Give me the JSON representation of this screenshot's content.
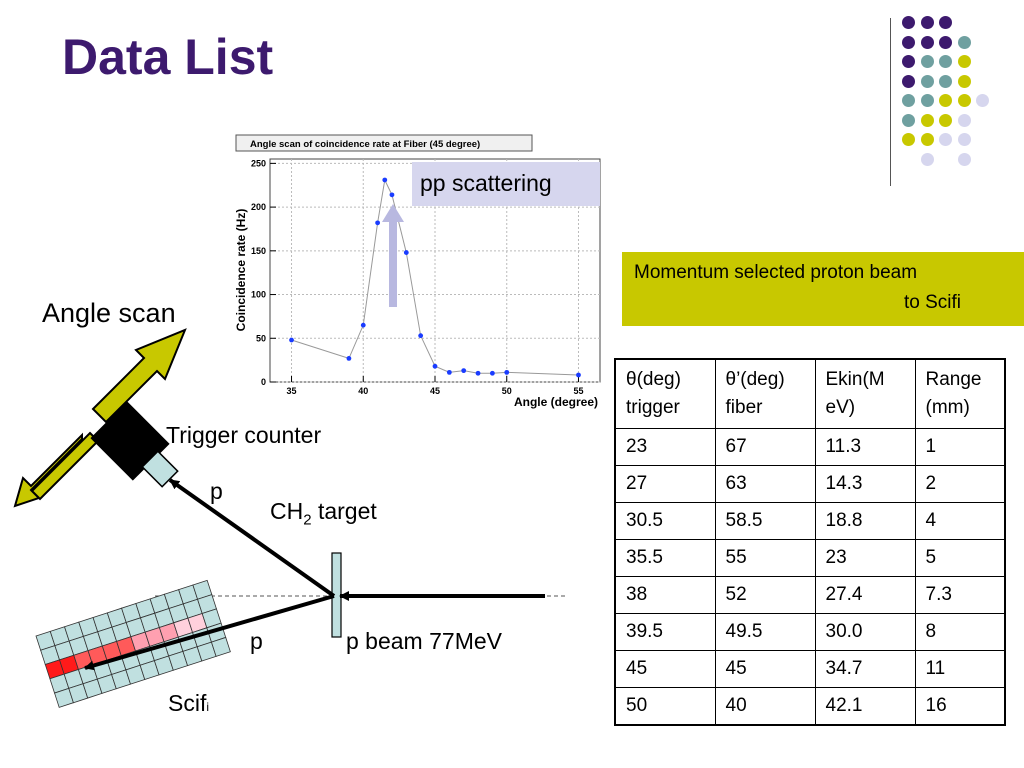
{
  "slide": {
    "title": "Data List",
    "accent_colors": {
      "purple": "#3d1a6e",
      "teal": "#6fa0a0",
      "olive": "#c8c800",
      "lavender": "#d6d6ee"
    }
  },
  "decoration": {
    "dot_grid": [
      [
        "purple",
        "purple",
        "purple",
        "none"
      ],
      [
        "purple",
        "purple",
        "purple",
        "teal"
      ],
      [
        "purple",
        "teal",
        "teal",
        "olive"
      ],
      [
        "purple",
        "teal",
        "teal",
        "olive"
      ],
      [
        "teal",
        "teal",
        "olive",
        "olive",
        "lavender"
      ],
      [
        "teal",
        "olive",
        "olive",
        "lavender"
      ],
      [
        "olive",
        "olive",
        "lavender",
        "lavender"
      ],
      [
        "none",
        "lavender",
        "none",
        "lavender"
      ]
    ]
  },
  "chart_data": {
    "type": "scatter",
    "title": "Angle scan of coincidence rate at Fiber (45 degree)",
    "xlabel": "Angle (degree)",
    "ylabel": "Coincidence rate (Hz)",
    "xlim": [
      33.5,
      56.5
    ],
    "ylim": [
      0,
      255
    ],
    "xticks": [
      35,
      40,
      45,
      50,
      55
    ],
    "yticks": [
      0,
      50,
      100,
      150,
      200,
      250
    ],
    "grid": true,
    "series": [
      {
        "x": [
          35,
          39,
          40,
          41,
          41.5,
          42,
          43,
          44,
          45,
          46,
          47,
          48,
          49,
          50,
          55
        ],
        "y": [
          48,
          27,
          65,
          182,
          231,
          214,
          148,
          53,
          18,
          11,
          13,
          10,
          10,
          11,
          8
        ]
      }
    ]
  },
  "annotations": {
    "pp_scattering": "pp scattering",
    "angle_scan": "Angle scan",
    "trigger_counter": "Trigger counter",
    "p_upper": "p",
    "ch2_target_main": "CH",
    "ch2_target_sub": "2",
    "ch2_target_rest": " target",
    "p_lower": "p",
    "p_beam": "p beam 77MeV",
    "scifi_main": "Scif",
    "scifi_sub": "i"
  },
  "momentum_box": {
    "line1": "Momentum selected proton beam",
    "line2": "to Scifi"
  },
  "table": {
    "headers": [
      [
        "θ(deg)",
        "trigger"
      ],
      [
        "θ’(deg)",
        "fiber"
      ],
      [
        "Ekin(M",
        "eV)"
      ],
      [
        "Range",
        "(mm)"
      ]
    ],
    "rows": [
      [
        "23",
        "67",
        "11.3",
        "1"
      ],
      [
        "27",
        "63",
        "14.3",
        "2"
      ],
      [
        "30.5",
        "58.5",
        "18.8",
        "4"
      ],
      [
        "35.5",
        "55",
        "23",
        "5"
      ],
      [
        "38",
        "52",
        "27.4",
        "7.3"
      ],
      [
        "39.5",
        "49.5",
        "30.0",
        "8"
      ],
      [
        "45",
        "45",
        "34.7",
        "11"
      ],
      [
        "50",
        "40",
        "42.1",
        "16"
      ]
    ]
  }
}
